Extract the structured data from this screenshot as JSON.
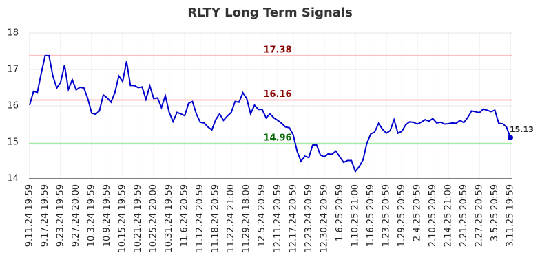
{
  "chart_data": {
    "type": "line",
    "title": "RLTY Long Term Signals",
    "categories": [
      "9.11.24 19:59",
      null,
      null,
      null,
      "9.17.24 19:59",
      null,
      null,
      null,
      "9.23.24 19:59",
      null,
      null,
      null,
      "9.27.24 20:00",
      null,
      null,
      null,
      "10.3.24 19:59",
      null,
      null,
      null,
      "10.9.24 19:59",
      null,
      null,
      null,
      "10.15.24 19:59",
      null,
      null,
      null,
      "10.21.24 19:59",
      null,
      null,
      null,
      "10.25.24 20:00",
      null,
      null,
      null,
      "10.31.24 19:59",
      null,
      null,
      null,
      "11.6.24 20:59",
      null,
      null,
      null,
      "11.12.24 20:59",
      null,
      null,
      null,
      "11.18.24 20:59",
      null,
      null,
      null,
      "11.22.24 21:00",
      null,
      null,
      null,
      "11.29.24 18:00",
      null,
      null,
      null,
      "12.5.24 20:59",
      null,
      null,
      null,
      "12.11.24 20:59",
      null,
      null,
      null,
      "12.17.24 20:59",
      null,
      null,
      null,
      "12.23.24 20:59",
      null,
      null,
      null,
      "12.30.24 20:59",
      null,
      null,
      null,
      "1.6.25 20:59",
      null,
      null,
      null,
      "1.10.25 21:00",
      null,
      null,
      null,
      "1.16.25 20:59",
      null,
      null,
      null,
      "1.23.25 20:59",
      null,
      null,
      null,
      "1.29.25 20:59",
      null,
      null,
      null,
      "2.4.25 20:59",
      null,
      null,
      null,
      "2.10.25 20:59",
      null,
      null,
      null,
      "2.14.25 21:00",
      null,
      null,
      null,
      "2.21.25 20:59",
      null,
      null,
      null,
      "2.27.25 20:59",
      null,
      null,
      null,
      "3.5.25 20:59",
      null,
      null,
      null,
      "3.11.25 19:59"
    ],
    "series": [
      {
        "color": "#0000cc",
        "values": [
          16.02,
          16.4,
          16.37,
          16.9,
          17.38,
          17.38,
          16.82,
          16.49,
          16.65,
          17.12,
          16.45,
          16.72,
          16.44,
          16.51,
          16.49,
          16.2,
          15.8,
          15.77,
          15.86,
          16.3,
          16.22,
          16.1,
          16.37,
          16.82,
          16.67,
          17.22,
          16.56,
          16.56,
          16.5,
          16.52,
          16.18,
          16.55,
          16.2,
          16.22,
          15.95,
          16.28,
          15.82,
          15.57,
          15.82,
          15.78,
          15.73,
          16.07,
          16.12,
          15.78,
          15.55,
          15.53,
          15.42,
          15.34,
          15.62,
          15.78,
          15.6,
          15.72,
          15.82,
          16.12,
          16.1,
          16.36,
          16.2,
          15.78,
          16.02,
          15.9,
          15.9,
          15.67,
          15.78,
          15.67,
          15.6,
          15.52,
          15.42,
          15.4,
          15.2,
          14.75,
          14.48,
          14.62,
          14.58,
          14.92,
          14.93,
          14.65,
          14.6,
          14.68,
          14.67,
          14.76,
          14.6,
          14.45,
          14.5,
          14.5,
          14.2,
          14.33,
          14.52,
          14.98,
          15.23,
          15.28,
          15.52,
          15.36,
          15.25,
          15.32,
          15.62,
          15.25,
          15.3,
          15.48,
          15.56,
          15.55,
          15.5,
          15.55,
          15.62,
          15.58,
          15.65,
          15.53,
          15.55,
          15.5,
          15.51,
          15.53,
          15.52,
          15.6,
          15.54,
          15.68,
          15.86,
          15.84,
          15.81,
          15.91,
          15.88,
          15.84,
          15.88,
          15.52,
          15.51,
          15.42,
          15.13
        ]
      }
    ],
    "reference_lines": [
      {
        "value": 17.38,
        "color": "#ffbfbf",
        "label_color": "#8b0000"
      },
      {
        "value": 16.16,
        "color": "#ffbfbf",
        "label_color": "#8b0000"
      },
      {
        "value": 14.96,
        "color": "#90ee90",
        "label_color": "#006400"
      }
    ],
    "ylim": [
      14,
      18
    ],
    "yticks": [
      14,
      15,
      16,
      17,
      18
    ],
    "grid": true
  }
}
